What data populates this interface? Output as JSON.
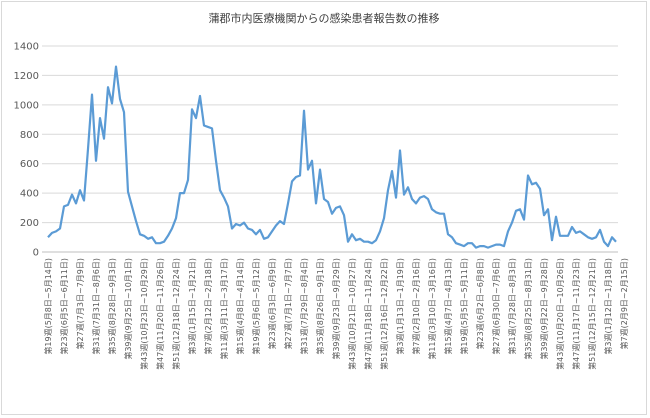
{
  "chart_data": {
    "type": "line",
    "title": "蒲郡市内医療機関からの感染患者報告数の推移",
    "xlabel": "",
    "ylabel": "",
    "ylim": [
      0,
      1400
    ],
    "yticks": [
      0,
      200,
      400,
      600,
      800,
      1000,
      1200,
      1400
    ],
    "grid": true,
    "legend": "none",
    "line_color": "#5b9bd5",
    "x_tick_labels": [
      "第19週(5月8日~5月14日)",
      "第23週(6月5日~6月11日)",
      "第27週(7月3日~7月9日)",
      "第31週(7月31日~8月6日)",
      "第35週(8月28日~9月3日)",
      "第39週(9月25日~10月1日)",
      "第43週(10月23日~10月29日)",
      "第47週(11月20日~11月26日)",
      "第51週(12月18日~12月24日)",
      "第3週(1月15日~1月21日)",
      "第7週(2月12日~2月18日)",
      "第11週(3月11日~3月17日)",
      "第15週(4月8日~4月14日)",
      "第19週(5月6日~5月12日)",
      "第23週(6月3日~6月9日)",
      "第27週(7月1日~7月7日)",
      "第31週(7月29日~8月4日)",
      "第35週(8月26日~9月1日)",
      "第39週(9月23日~9月29日)",
      "第43週(10月21日~10月27日)",
      "第47週(11月18日~11月24日)",
      "第51週(12月16日~12月22日)",
      "第3週(1月13日~1月19日)",
      "第7週(2月10日~2月16日)",
      "第11週(3月10日~3月16日)",
      "第15週(4月7日~4月13日)",
      "第19週(5月5日~5月11日)",
      "第23週(6月2日~6月8日)",
      "第27週(6月30日~7月6日)",
      "第31週(7月28日~8月3日)",
      "第35週(8月25日~8月31日)",
      "第39週(9月22日~9月28日)",
      "第43週(10月20日~10月26日)",
      "第47週(11月17日~11月23日)",
      "第51週(12月15日~12月21日)",
      "第3週(1月12日~1月18日)",
      "第7週(2月9日~2月15日)"
    ],
    "values": [
      100,
      130,
      140,
      160,
      310,
      320,
      390,
      330,
      420,
      350,
      700,
      1070,
      620,
      910,
      770,
      1120,
      1010,
      1260,
      1040,
      950,
      410,
      310,
      210,
      120,
      110,
      90,
      100,
      60,
      60,
      70,
      110,
      160,
      230,
      400,
      400,
      490,
      970,
      910,
      1060,
      860,
      850,
      840,
      620,
      420,
      370,
      310,
      160,
      190,
      180,
      200,
      160,
      150,
      120,
      150,
      90,
      100,
      140,
      180,
      210,
      190,
      330,
      480,
      510,
      520,
      960,
      560,
      620,
      330,
      560,
      360,
      340,
      260,
      300,
      310,
      250,
      70,
      120,
      80,
      90,
      70,
      70,
      60,
      80,
      140,
      230,
      420,
      550,
      370,
      690,
      390,
      440,
      360,
      330,
      370,
      380,
      360,
      290,
      270,
      260,
      260,
      120,
      100,
      60,
      50,
      40,
      60,
      60,
      30,
      40,
      40,
      30,
      40,
      50,
      50,
      40,
      140,
      200,
      280,
      290,
      220,
      520,
      460,
      470,
      430,
      250,
      290,
      80,
      240,
      110,
      110,
      110,
      170,
      130,
      140,
      120,
      100,
      90,
      100,
      150,
      70,
      40,
      100,
      70
    ]
  }
}
